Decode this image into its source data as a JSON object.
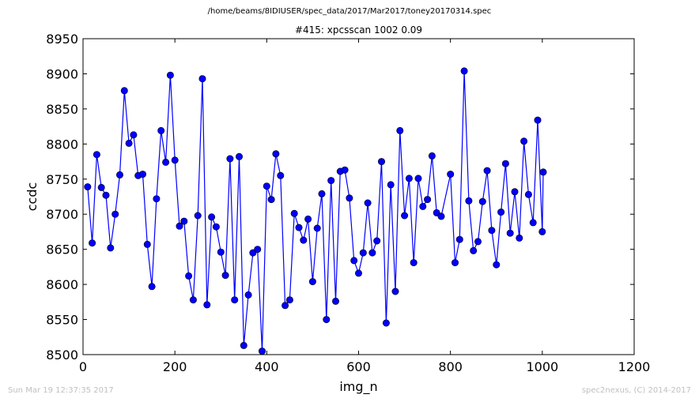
{
  "source_path": "/home/beams/8IDIUSER/spec_data/2017/Mar2017/toney20170314.spec",
  "footer": {
    "timestamp": "Sun Mar 19 12:37:35 2017",
    "credit": "spec2nexus, (C) 2014-2017"
  },
  "chart_data": {
    "type": "line",
    "title": "#415: xpcsscan 1002 0.09",
    "xlabel": "img_n",
    "ylabel": "ccdc",
    "xlim": [
      0,
      1200
    ],
    "ylim": [
      8500,
      8950
    ],
    "xticks": [
      0,
      200,
      400,
      600,
      800,
      1000,
      1200
    ],
    "yticks": [
      8500,
      8550,
      8600,
      8650,
      8700,
      8750,
      8800,
      8850,
      8900,
      8950
    ],
    "grid": false,
    "line_color": "#0000ff",
    "marker_color": "#0000ff",
    "series": [
      {
        "x": [
          10,
          20,
          30,
          40,
          50,
          60,
          70,
          80,
          90,
          100,
          110,
          120,
          130,
          140,
          150,
          160,
          170,
          180,
          190,
          200,
          210,
          220,
          230,
          240,
          250,
          260,
          270,
          280,
          290,
          300,
          310,
          320,
          330,
          340,
          350,
          360,
          370,
          380,
          390,
          400,
          410,
          420,
          430,
          440,
          450,
          460,
          470,
          480,
          490,
          500,
          510,
          520,
          530,
          540,
          550,
          560,
          570,
          580,
          590,
          600,
          610,
          620,
          630,
          640,
          650,
          660,
          670,
          680,
          690,
          700,
          710,
          720,
          730,
          740,
          750,
          760,
          770,
          780,
          800,
          810,
          820,
          830,
          840,
          850,
          860,
          870,
          880,
          890,
          900,
          910,
          920,
          930,
          940,
          950,
          960,
          970,
          980,
          990,
          1000,
          1002
        ],
        "y": [
          8739,
          8659,
          8785,
          8738,
          8727,
          8652,
          8700,
          8756,
          8876,
          8801,
          8813,
          8755,
          8757,
          8657,
          8597,
          8722,
          8819,
          8774,
          8898,
          8777,
          8683,
          8690,
          8612,
          8578,
          8698,
          8893,
          8571,
          8696,
          8682,
          8646,
          8613,
          8779,
          8578,
          8782,
          8513,
          8585,
          8645,
          8650,
          8505,
          8740,
          8721,
          8786,
          8755,
          8570,
          8578,
          8701,
          8681,
          8663,
          8693,
          8604,
          8680,
          8729,
          8550,
          8748,
          8576,
          8761,
          8763,
          8723,
          8634,
          8616,
          8645,
          8716,
          8645,
          8662,
          8775,
          8545,
          8742,
          8590,
          8819,
          8698,
          8751,
          8631,
          8751,
          8711,
          8721,
          8783,
          8702,
          8697,
          8757,
          8631,
          8664,
          8904,
          8719,
          8648,
          8661,
          8718,
          8762,
          8677,
          8628,
          8703,
          8772,
          8673,
          8732,
          8666,
          8804,
          8728,
          8688,
          8834,
          8675,
          8760
        ]
      }
    ]
  }
}
